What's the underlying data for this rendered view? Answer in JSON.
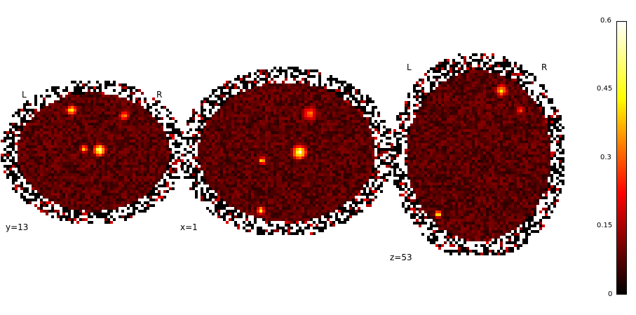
{
  "panels": [
    {
      "id": "coronal",
      "coord": "y=13",
      "left_label": "L",
      "right_label": "R"
    },
    {
      "id": "sagittal",
      "coord": "x=1"
    },
    {
      "id": "axial",
      "coord": "z=53",
      "left_label": "L",
      "right_label": "R"
    }
  ],
  "colorbar": {
    "colormap": "hot",
    "ticks": [
      "0.6",
      "0.45",
      "0.3",
      "0.15",
      "0"
    ],
    "min": 0,
    "max": 0.6
  },
  "colors": {
    "background": "#ffffff",
    "hot_low": "#000000",
    "hot_mid": "#ff0000",
    "hot_high": "#ffff00",
    "hot_top": "#ffffff"
  }
}
